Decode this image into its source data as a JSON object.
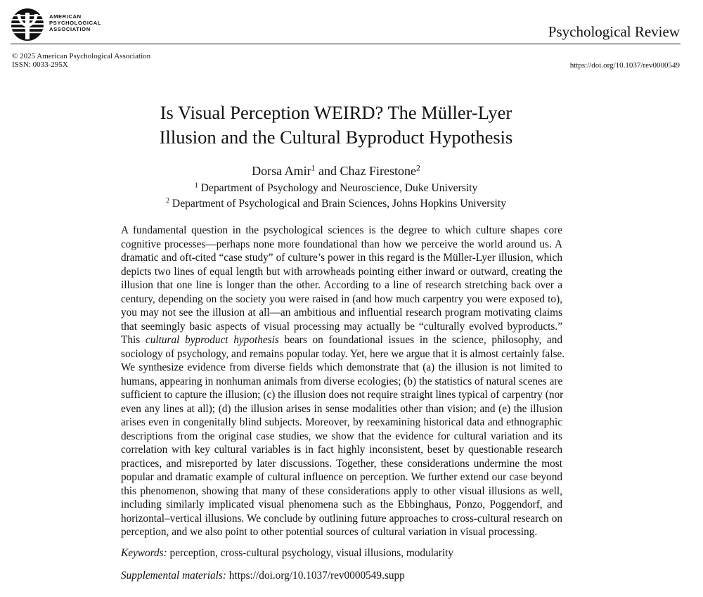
{
  "header": {
    "publisher_lines": [
      "AMERICAN",
      "PSYCHOLOGICAL",
      "ASSOCIATION"
    ],
    "journal": "Psychological Review",
    "copyright": "© 2025 American Psychological Association",
    "issn": "ISSN: 0033-295X",
    "doi": "https://doi.org/10.1037/rev0000549"
  },
  "article": {
    "title_lines": [
      "Is Visual Perception WEIRD? The Müller-Lyer",
      "Illusion and the Cultural Byproduct Hypothesis"
    ],
    "authors": [
      {
        "name": "Dorsa Amir",
        "sup": "1"
      },
      {
        "name": "Chaz Firestone",
        "sup": "2"
      }
    ],
    "author_joiner": " and ",
    "affiliations": [
      {
        "sup": "1",
        "text": " Department of Psychology and Neuroscience, Duke University"
      },
      {
        "sup": "2",
        "text": " Department of Psychological and Brain Sciences, Johns Hopkins University"
      }
    ],
    "abstract_lines": [
      "A fundamental question in the psychological sciences is the degree to which culture shapes core",
      "cognitive processes—perhaps none more foundational than how we perceive the world around us. A",
      "dramatic and oft-cited “case study” of culture’s power in this regard is the Müller-Lyer illusion, which",
      "depicts two lines of equal length but with arrowheads pointing either inward or outward, creating the",
      "illusion that one line is longer than the other. According to a line of research stretching back over a",
      "century, depending on the society you were raised in (and how much carpentry you were exposed to),",
      "you may not see the illusion at all—an ambitious and influential research program motivating claims",
      "that seemingly basic aspects of visual processing may actually be “culturally evolved byproducts.”",
      {
        "before": "This ",
        "italic": "cultural byproduct hypothesis",
        "after": " bears on foundational issues in the science, philosophy, and"
      },
      "sociology of psychology, and remains popular today. Yet, here we argue that it is almost certainly false.",
      "We synthesize evidence from diverse fields which demonstrate that (a) the illusion is not limited to",
      "humans, appearing in nonhuman animals from diverse ecologies; (b) the statistics of natural scenes are",
      "sufficient to capture the illusion; (c) the illusion does not require straight lines typical of carpentry (nor",
      "even any lines at all); (d) the illusion arises in sense modalities other than vision; and (e) the illusion",
      "arises even in congenitally blind subjects. Moreover, by reexamining historical data and ethnographic",
      "descriptions from the original case studies, we show that the evidence for cultural variation and its",
      "correlation with key cultural variables is in fact highly inconsistent, beset by questionable research",
      "practices, and misreported by later discussions. Together, these considerations undermine the most",
      "popular and dramatic example of cultural influence on perception. We further extend our case beyond",
      "this phenomenon, showing that many of these considerations apply to other visual illusions as well,",
      "including similarly implicated visual phenomena such as the Ebbinghaus, Ponzo, Poggendorf, and",
      "horizontal–vertical illusions. We conclude by outlining future approaches to cross-cultural research on",
      "perception, and we also point to other potential sources of cultural variation in visual processing."
    ],
    "keywords_label": "Keywords:",
    "keywords": " perception, cross-cultural psychology, visual illusions, modularity",
    "supplemental_label": "Supplemental materials:",
    "supplemental_link": " https://doi.org/10.1037/rev0000549.supp"
  }
}
